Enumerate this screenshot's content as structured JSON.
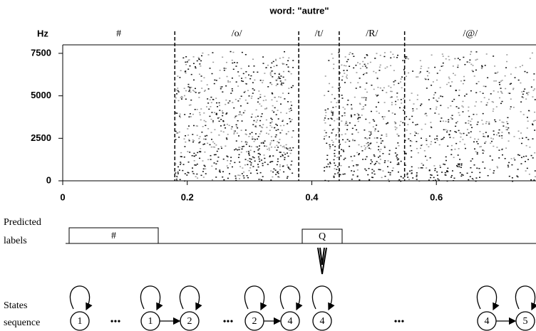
{
  "title": "word: \"autre\"",
  "spectrogram": {
    "y_label": "Hz",
    "xlim": [
      0,
      0.76
    ],
    "ylim": [
      0,
      8000
    ],
    "xticks": [
      0,
      0.2,
      0.4,
      0.6
    ],
    "yticks": [
      0,
      2500,
      5000,
      7500
    ],
    "boundaries": [
      0.18,
      0.379,
      0.444,
      0.549
    ],
    "segments": [
      "#",
      "/o/",
      "/t/",
      "/R/",
      "/@/"
    ]
  },
  "predicted": {
    "label": [
      "Predicted",
      "labels"
    ],
    "boxes": [
      "#",
      "Q"
    ]
  },
  "states": {
    "label": [
      "States",
      "sequence"
    ],
    "items": [
      "1",
      "•••",
      "1",
      "2",
      "•••",
      "2",
      "4",
      "4",
      "•••",
      "4",
      "5"
    ]
  }
}
